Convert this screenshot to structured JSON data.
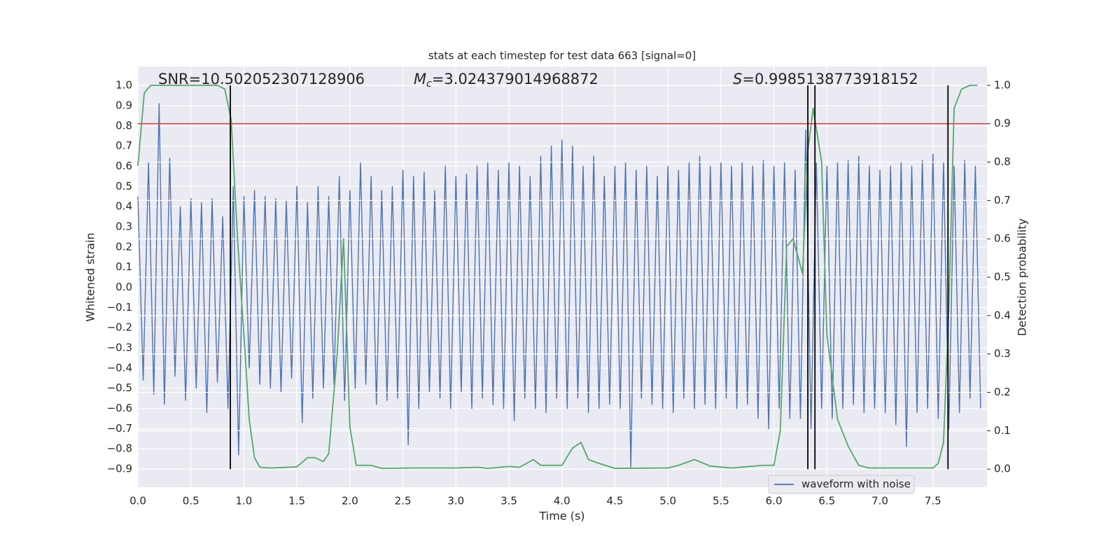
{
  "chart_data": {
    "type": "line",
    "title": "stats at each timestep for test data 663 [signal=0]",
    "xlabel": "Time (s)",
    "ylabel": "Whitened strain",
    "y2label": "Detection probability",
    "annotations": [
      {
        "symbol": "SNR",
        "subscript": null,
        "text": "=10.502052307128906"
      },
      {
        "symbol": "M",
        "subscript": "c",
        "text": "=3.024379014968872"
      },
      {
        "symbol": "S",
        "subscript": null,
        "text": "=0.9985138773918152"
      }
    ],
    "xlim": [
      0,
      8.01
    ],
    "ylim": [
      -0.99,
      1.094
    ],
    "y2lim": [
      -0.047,
      1.049
    ],
    "xticks": [
      {
        "value": 0,
        "label": "0.0"
      },
      {
        "value": 0.5,
        "label": "0.5"
      },
      {
        "value": 1,
        "label": "1.0"
      },
      {
        "value": 1.5,
        "label": "1.5"
      },
      {
        "value": 2,
        "label": "2.0"
      },
      {
        "value": 2.5,
        "label": "2.5"
      },
      {
        "value": 3,
        "label": "3.0"
      },
      {
        "value": 3.5,
        "label": "3.5"
      },
      {
        "value": 4,
        "label": "4.0"
      },
      {
        "value": 4.5,
        "label": "4.5"
      },
      {
        "value": 5,
        "label": "5.0"
      },
      {
        "value": 5.5,
        "label": "5.5"
      },
      {
        "value": 6,
        "label": "6.0"
      },
      {
        "value": 6.5,
        "label": "6.5"
      },
      {
        "value": 7,
        "label": "7.0"
      },
      {
        "value": 7.5,
        "label": "7.5"
      }
    ],
    "yticks": [
      {
        "value": -0.9,
        "label": "−0.9"
      },
      {
        "value": -0.8,
        "label": "−0.8"
      },
      {
        "value": -0.7,
        "label": "−0.7"
      },
      {
        "value": -0.6,
        "label": "−0.6"
      },
      {
        "value": -0.5,
        "label": "−0.5"
      },
      {
        "value": -0.4,
        "label": "−0.4"
      },
      {
        "value": -0.3,
        "label": "−0.3"
      },
      {
        "value": -0.2,
        "label": "−0.2"
      },
      {
        "value": -0.1,
        "label": "−0.1"
      },
      {
        "value": 0,
        "label": "0.0"
      },
      {
        "value": 0.1,
        "label": "0.1"
      },
      {
        "value": 0.2,
        "label": "0.2"
      },
      {
        "value": 0.3,
        "label": "0.3"
      },
      {
        "value": 0.4,
        "label": "0.4"
      },
      {
        "value": 0.5,
        "label": "0.5"
      },
      {
        "value": 0.6,
        "label": "0.6"
      },
      {
        "value": 0.7,
        "label": "0.7"
      },
      {
        "value": 0.8,
        "label": "0.8"
      },
      {
        "value": 0.9,
        "label": "0.9"
      },
      {
        "value": 1,
        "label": "1.0"
      }
    ],
    "y2ticks": [
      {
        "value": 0,
        "label": "0.0"
      },
      {
        "value": 0.1,
        "label": "0.1"
      },
      {
        "value": 0.2,
        "label": "0.2"
      },
      {
        "value": 0.3,
        "label": "0.3"
      },
      {
        "value": 0.4,
        "label": "0.4"
      },
      {
        "value": 0.5,
        "label": "0.5"
      },
      {
        "value": 0.6,
        "label": "0.6"
      },
      {
        "value": 0.7,
        "label": "0.7"
      },
      {
        "value": 0.8,
        "label": "0.8"
      },
      {
        "value": 0.9,
        "label": "0.9"
      },
      {
        "value": 1,
        "label": "1.0"
      }
    ],
    "grid": true,
    "legend": "lower right",
    "threshold": {
      "axis": "y2",
      "value": 0.9,
      "color": "#c44e52"
    },
    "vlines": {
      "axis": "y2",
      "x": [
        0.872,
        6.32,
        6.387,
        7.642
      ],
      "from": 0,
      "to": 1,
      "color": "#000000"
    },
    "series": [
      {
        "name": "waveform with noise",
        "color": "#4c72b0",
        "axis": "y",
        "x": [
          0,
          0.05,
          0.1,
          0.15,
          0.2,
          0.25,
          0.3,
          0.35,
          0.4,
          0.45,
          0.5,
          0.55,
          0.6,
          0.65,
          0.7,
          0.75,
          0.8,
          0.85,
          0.9,
          0.95,
          1,
          1.05,
          1.1,
          1.15,
          1.2,
          1.25,
          1.3,
          1.35,
          1.4,
          1.45,
          1.5,
          1.55,
          1.6,
          1.65,
          1.7,
          1.75,
          1.8,
          1.85,
          1.9,
          1.95,
          2,
          2.05,
          2.1,
          2.15,
          2.2,
          2.25,
          2.3,
          2.35,
          2.4,
          2.45,
          2.5,
          2.55,
          2.6,
          2.65,
          2.7,
          2.75,
          2.8,
          2.85,
          2.9,
          2.95,
          3,
          3.05,
          3.1,
          3.15,
          3.2,
          3.25,
          3.3,
          3.35,
          3.4,
          3.45,
          3.5,
          3.55,
          3.6,
          3.65,
          3.7,
          3.75,
          3.8,
          3.85,
          3.9,
          3.95,
          4,
          4.05,
          4.1,
          4.15,
          4.2,
          4.25,
          4.3,
          4.35,
          4.4,
          4.45,
          4.5,
          4.55,
          4.6,
          4.65,
          4.7,
          4.75,
          4.8,
          4.85,
          4.9,
          4.95,
          5,
          5.05,
          5.1,
          5.15,
          5.2,
          5.25,
          5.3,
          5.35,
          5.4,
          5.45,
          5.5,
          5.55,
          5.6,
          5.65,
          5.7,
          5.75,
          5.8,
          5.85,
          5.9,
          5.95,
          6,
          6.05,
          6.1,
          6.15,
          6.2,
          6.25,
          6.3,
          6.35,
          6.4,
          6.45,
          6.5,
          6.55,
          6.6,
          6.65,
          6.7,
          6.75,
          6.8,
          6.85,
          6.9,
          6.95,
          7,
          7.05,
          7.1,
          7.15,
          7.2,
          7.25,
          7.3,
          7.35,
          7.4,
          7.45,
          7.5,
          7.55,
          7.6,
          7.65,
          7.7,
          7.75,
          7.8,
          7.85,
          7.9,
          7.95
        ],
        "values": [
          0.45,
          -0.46,
          0.62,
          -0.53,
          0.91,
          -0.58,
          0.64,
          -0.44,
          0.4,
          -0.56,
          0.44,
          -0.5,
          0.42,
          -0.62,
          0.44,
          -0.47,
          0.35,
          -0.6,
          0.5,
          -0.83,
          0.45,
          -0.4,
          0.48,
          -0.48,
          0.45,
          -0.5,
          0.44,
          -0.52,
          0.43,
          -0.45,
          0.5,
          -0.67,
          0.42,
          -0.55,
          0.5,
          -0.5,
          0.45,
          -0.48,
          0.55,
          -0.56,
          0.48,
          -0.5,
          0.62,
          -0.48,
          0.55,
          -0.58,
          0.48,
          -0.56,
          0.5,
          -0.55,
          0.58,
          -0.78,
          0.55,
          -0.6,
          0.57,
          -0.52,
          0.48,
          -0.55,
          0.6,
          -0.6,
          0.55,
          -0.52,
          0.56,
          -0.6,
          0.6,
          -0.55,
          0.62,
          -0.58,
          0.58,
          -0.6,
          0.62,
          -0.66,
          0.6,
          -0.55,
          0.55,
          -0.6,
          0.65,
          -0.62,
          0.7,
          -0.55,
          0.73,
          -0.6,
          0.7,
          -0.55,
          0.6,
          -0.62,
          0.65,
          -0.6,
          0.55,
          -0.58,
          0.6,
          -0.6,
          0.62,
          -0.89,
          0.58,
          -0.55,
          0.6,
          -0.58,
          0.55,
          -0.6,
          0.6,
          -0.62,
          0.58,
          -0.55,
          0.62,
          -0.6,
          0.65,
          -0.58,
          0.6,
          -0.6,
          0.62,
          -0.55,
          0.6,
          -0.6,
          0.62,
          -0.58,
          0.6,
          -0.65,
          0.63,
          -0.7,
          0.6,
          -0.6,
          0.62,
          -0.65,
          0.58,
          -0.65,
          0.78,
          -0.7,
          0.62,
          -0.6,
          0.6,
          -0.65,
          0.62,
          -0.6,
          0.63,
          -0.58,
          0.65,
          -0.62,
          0.6,
          -0.6,
          0.58,
          -0.62,
          0.6,
          -0.68,
          0.62,
          -0.79,
          0.6,
          -0.62,
          0.63,
          -0.6,
          0.66,
          -0.65,
          0.62,
          -0.7,
          0.6,
          -0.62,
          0.63,
          -0.55,
          0.6,
          -0.6
        ]
      },
      {
        "color": "#55a868",
        "axis": "y2",
        "x": [
          0,
          0.06,
          0.12,
          0.5,
          0.75,
          0.82,
          0.88,
          0.94,
          1,
          1.05,
          1.1,
          1.15,
          1.25,
          1.5,
          1.6,
          1.67,
          1.75,
          1.8,
          1.88,
          1.94,
          2,
          2.06,
          2.2,
          2.3,
          2.6,
          3,
          3.2,
          3.3,
          3.5,
          3.6,
          3.73,
          3.8,
          4,
          4.1,
          4.18,
          4.25,
          4.35,
          4.5,
          5,
          5.1,
          5.25,
          5.4,
          5.6,
          5.9,
          6,
          6.06,
          6.12,
          6.18,
          6.27,
          6.32,
          6.37,
          6.45,
          6.5,
          6.6,
          6.7,
          6.8,
          6.9,
          7.5,
          7.55,
          7.6,
          7.65,
          7.7,
          7.77,
          7.85,
          7.92
        ],
        "values": [
          0.79,
          0.98,
          1,
          1,
          1,
          0.99,
          0.91,
          0.6,
          0.35,
          0.13,
          0.03,
          0.005,
          0.003,
          0.006,
          0.03,
          0.03,
          0.02,
          0.04,
          0.3,
          0.6,
          0.11,
          0.01,
          0.01,
          0.002,
          0.003,
          0.003,
          0.005,
          0.002,
          0.007,
          0.005,
          0.025,
          0.01,
          0.01,
          0.055,
          0.07,
          0.025,
          0.015,
          0.002,
          0.003,
          0.01,
          0.025,
          0.008,
          0.003,
          0.01,
          0.01,
          0.1,
          0.58,
          0.6,
          0.51,
          0.83,
          0.94,
          0.8,
          0.35,
          0.13,
          0.06,
          0.01,
          0.003,
          0.003,
          0.015,
          0.07,
          0.42,
          0.94,
          0.99,
          1,
          1
        ]
      }
    ]
  }
}
